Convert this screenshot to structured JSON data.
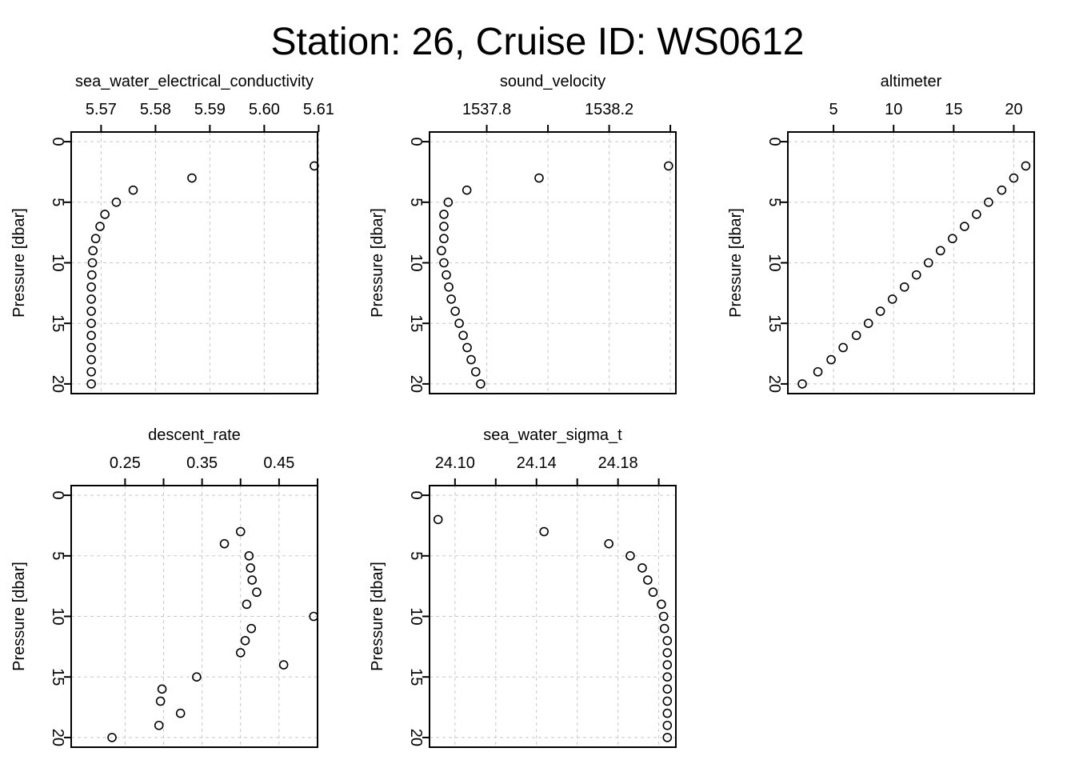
{
  "page_title": "Station: 26, Cruise ID: WS0612",
  "chart_data": [
    {
      "type": "scatter",
      "title": "sea_water_electrical_conductivity",
      "ylabel": "Pressure [dbar]",
      "xlim": [
        5.5645,
        5.6098
      ],
      "ylim": [
        20.8,
        -0.8
      ],
      "x_ticks": [
        5.57,
        5.58,
        5.59,
        5.6,
        5.61
      ],
      "x_tick_labels": [
        "5.57",
        "5.58",
        "5.59",
        "5.60",
        "5.61"
      ],
      "y_ticks": [
        0,
        5,
        10,
        15,
        20
      ],
      "y_tick_labels": [
        "0",
        "5",
        "10",
        "15",
        "20"
      ],
      "grid": true,
      "y": [
        2,
        3,
        4,
        5,
        6,
        7,
        8,
        9,
        10,
        11,
        12,
        13,
        14,
        15,
        16,
        17,
        18,
        19,
        20
      ],
      "x": [
        5.6092,
        5.5867,
        5.5759,
        5.5728,
        5.5707,
        5.5698,
        5.569,
        5.5685,
        5.5684,
        5.5683,
        5.5682,
        5.5682,
        5.5682,
        5.5682,
        5.5682,
        5.5682,
        5.5682,
        5.5682,
        5.5682
      ]
    },
    {
      "type": "scatter",
      "title": "sound_velocity",
      "ylabel": "Pressure [dbar]",
      "xlim": [
        1537.613,
        1538.418
      ],
      "ylim": [
        20.8,
        -0.8
      ],
      "x_ticks": [
        1537.8,
        1538.0,
        1538.2,
        1538.4
      ],
      "x_tick_labels": [
        "1537.8",
        "",
        "1538.2",
        ""
      ],
      "y_ticks": [
        0,
        5,
        10,
        15,
        20
      ],
      "y_tick_labels": [
        "0",
        "5",
        "10",
        "15",
        "20"
      ],
      "grid": true,
      "y": [
        2,
        3,
        4,
        5,
        6,
        7,
        8,
        9,
        10,
        11,
        12,
        13,
        14,
        15,
        16,
        17,
        18,
        19,
        20
      ],
      "x": [
        1538.394,
        1537.971,
        1537.735,
        1537.674,
        1537.66,
        1537.66,
        1537.66,
        1537.652,
        1537.66,
        1537.668,
        1537.676,
        1537.684,
        1537.697,
        1537.71,
        1537.723,
        1537.736,
        1537.749,
        1537.764,
        1537.78
      ]
    },
    {
      "type": "scatter",
      "title": "altimeter",
      "ylabel": "Pressure [dbar]",
      "xlim": [
        1.2,
        21.7
      ],
      "ylim": [
        20.8,
        -0.8
      ],
      "x_ticks": [
        5,
        10,
        15,
        20
      ],
      "x_tick_labels": [
        "5",
        "10",
        "15",
        "20"
      ],
      "y_ticks": [
        0,
        5,
        10,
        15,
        20
      ],
      "y_tick_labels": [
        "0",
        "5",
        "10",
        "15",
        "20"
      ],
      "grid": true,
      "y": [
        2,
        3,
        4,
        5,
        6,
        7,
        8,
        9,
        10,
        11,
        12,
        13,
        14,
        15,
        16,
        17,
        18,
        19,
        20
      ],
      "x": [
        21.0,
        20.0,
        19.0,
        17.9,
        16.9,
        15.9,
        14.9,
        13.9,
        12.9,
        11.9,
        10.9,
        9.9,
        8.9,
        7.9,
        6.9,
        5.8,
        4.8,
        3.7,
        2.4
      ]
    },
    {
      "type": "scatter",
      "title": "descent_rate",
      "ylabel": "Pressure [dbar]",
      "xlim": [
        0.18,
        0.5
      ],
      "ylim": [
        20.8,
        -0.8
      ],
      "x_ticks": [
        0.25,
        0.3,
        0.35,
        0.4,
        0.45,
        0.5
      ],
      "x_tick_labels": [
        "0.25",
        "",
        "0.35",
        "",
        "0.45",
        ""
      ],
      "y_ticks": [
        0,
        5,
        10,
        15,
        20
      ],
      "y_tick_labels": [
        "0",
        "5",
        "10",
        "15",
        "20"
      ],
      "grid": true,
      "y": [
        3,
        4,
        5,
        6,
        7,
        8,
        9,
        10,
        11,
        12,
        13,
        14,
        15,
        16,
        17,
        18,
        19,
        20
      ],
      "x": [
        0.4,
        0.379,
        0.411,
        0.413,
        0.415,
        0.421,
        0.408,
        0.495,
        0.414,
        0.406,
        0.4,
        0.456,
        0.343,
        0.298,
        0.296,
        0.322,
        0.294,
        0.233
      ]
    },
    {
      "type": "scatter",
      "title": "sea_water_sigma_t",
      "ylabel": "Pressure [dbar]",
      "xlim": [
        24.0875,
        24.2084
      ],
      "ylim": [
        20.8,
        -0.8
      ],
      "x_ticks": [
        24.1,
        24.12,
        24.14,
        24.16,
        24.18,
        24.2
      ],
      "x_tick_labels": [
        "24.10",
        "",
        "24.14",
        "",
        "24.18",
        ""
      ],
      "y_ticks": [
        0,
        5,
        10,
        15,
        20
      ],
      "y_tick_labels": [
        "0",
        "5",
        "10",
        "15",
        "20"
      ],
      "grid": true,
      "y": [
        2,
        3,
        4,
        5,
        6,
        7,
        8,
        9,
        10,
        11,
        12,
        13,
        14,
        15,
        16,
        17,
        18,
        19,
        20
      ],
      "x": [
        24.0917,
        24.1437,
        24.1755,
        24.186,
        24.1919,
        24.1946,
        24.1972,
        24.2013,
        24.2024,
        24.2028,
        24.2042,
        24.2042,
        24.2042,
        24.2042,
        24.2042,
        24.2042,
        24.2042,
        24.2042,
        24.2042
      ]
    }
  ]
}
